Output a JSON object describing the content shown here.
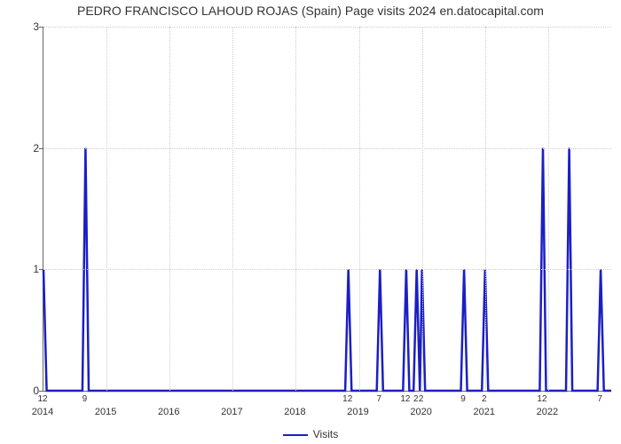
{
  "title": "PEDRO FRANCISCO LAHOUD ROJAS (Spain) Page visits 2024 en.datocapital.com",
  "chart": {
    "type": "line",
    "line_color": "#1b1fc4",
    "line_width": 2.5,
    "background_color": "#ffffff",
    "grid_color": "#cccccc",
    "axis_color": "#666666",
    "title_fontsize": 14,
    "ylim": [
      0,
      3
    ],
    "yticks": [
      0,
      1,
      2,
      3
    ],
    "x_total_months": 108,
    "years": [
      {
        "label": "2014",
        "month_index": 0
      },
      {
        "label": "2015",
        "month_index": 12
      },
      {
        "label": "2016",
        "month_index": 24
      },
      {
        "label": "2017",
        "month_index": 36
      },
      {
        "label": "2018",
        "month_index": 48
      },
      {
        "label": "2019",
        "month_index": 60
      },
      {
        "label": "2020",
        "month_index": 72
      },
      {
        "label": "2021",
        "month_index": 84
      },
      {
        "label": "2022",
        "month_index": 96
      }
    ],
    "peaks": [
      {
        "month_index": 0,
        "value": 1,
        "label": "12"
      },
      {
        "month_index": 8,
        "value": 2,
        "label": "9"
      },
      {
        "month_index": 58,
        "value": 1,
        "label": "12"
      },
      {
        "month_index": 64,
        "value": 1,
        "label": "7"
      },
      {
        "month_index": 69,
        "value": 1,
        "label": "12"
      },
      {
        "month_index": 71,
        "value": 1,
        "label": "2"
      },
      {
        "month_index": 72,
        "value": 1,
        "label": "2"
      },
      {
        "month_index": 80,
        "value": 1,
        "label": "9"
      },
      {
        "month_index": 84,
        "value": 1,
        "label": "2"
      },
      {
        "month_index": 95,
        "value": 2,
        "label": "12"
      },
      {
        "month_index": 100,
        "value": 2,
        "label": ""
      },
      {
        "month_index": 106,
        "value": 1,
        "label": "7"
      }
    ],
    "legend_label": "Visits"
  }
}
